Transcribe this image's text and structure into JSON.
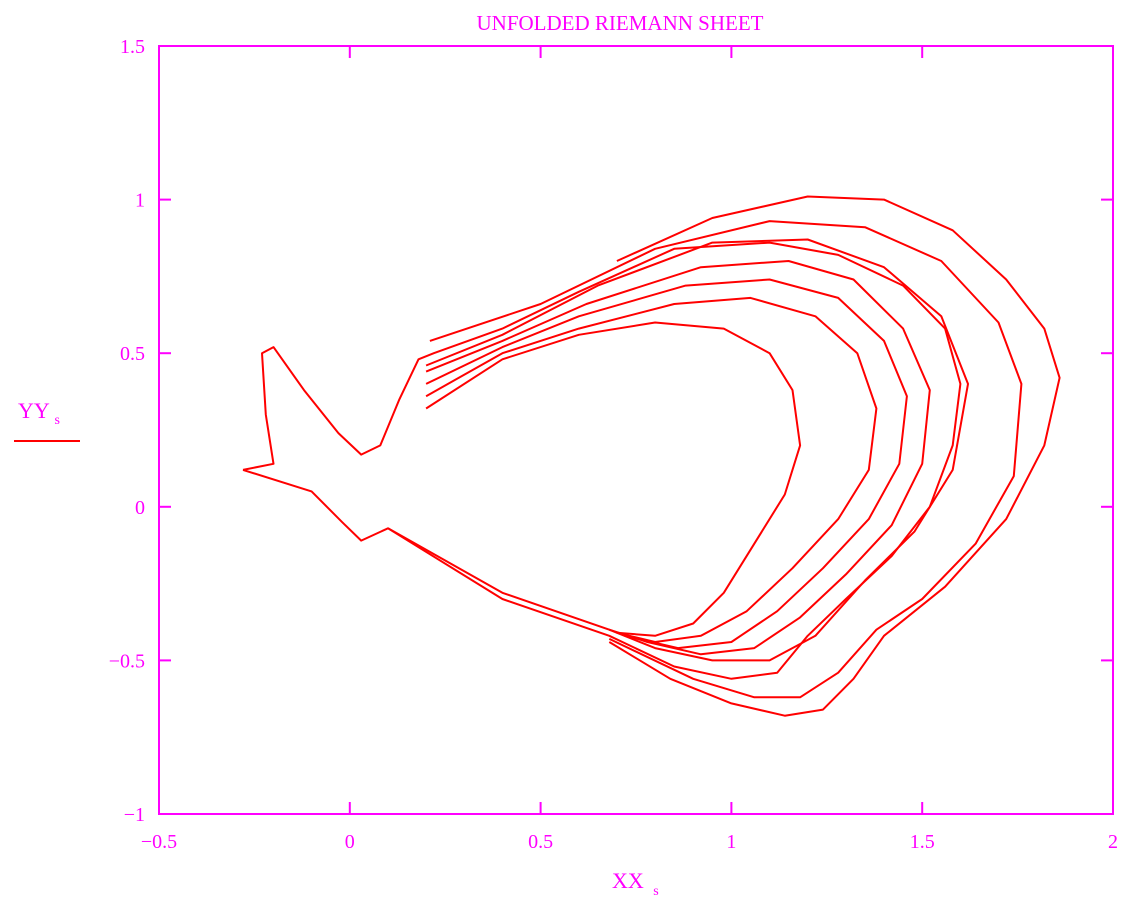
{
  "chart_data": {
    "type": "line",
    "title": "UNFOLDED RIEMANN SHEET",
    "xlabel": "XX",
    "xlabel_sub": "s",
    "ylabel": "YY",
    "ylabel_sub": "s",
    "xlim": [
      -0.5,
      2
    ],
    "ylim": [
      -1,
      1.5
    ],
    "xticks": [
      -0.5,
      0,
      0.5,
      1,
      1.5,
      2
    ],
    "yticks": [
      -1,
      -0.5,
      0,
      0.5,
      1,
      1.5
    ],
    "xtick_labels": [
      "−0.5",
      "0",
      "0.5",
      "1",
      "1.5",
      "2"
    ],
    "ytick_labels": [
      "−1",
      "−0.5",
      "0",
      "0.5",
      "1",
      "1.5"
    ],
    "grid": false,
    "legend": "left",
    "colors": {
      "axes": "#ff00ff",
      "series": "#ff0000"
    },
    "series": [
      {
        "points": [
          [
            -0.28,
            0.12
          ],
          [
            -0.2,
            0.14
          ],
          [
            -0.22,
            0.3
          ],
          [
            -0.23,
            0.5
          ],
          [
            -0.2,
            0.52
          ],
          [
            -0.12,
            0.38
          ],
          [
            -0.03,
            0.24
          ],
          [
            0.03,
            0.17
          ],
          [
            0.08,
            0.2
          ],
          [
            0.13,
            0.35
          ],
          [
            0.18,
            0.48
          ],
          [
            0.22,
            0.5
          ],
          [
            0.4,
            0.58
          ],
          [
            0.6,
            0.7
          ],
          [
            0.85,
            0.84
          ],
          [
            1.1,
            0.86
          ],
          [
            1.28,
            0.82
          ],
          [
            1.45,
            0.72
          ],
          [
            1.56,
            0.58
          ],
          [
            1.6,
            0.4
          ],
          [
            1.58,
            0.2
          ],
          [
            1.52,
            0.0
          ],
          [
            1.42,
            -0.16
          ],
          [
            1.3,
            -0.3
          ],
          [
            1.2,
            -0.42
          ],
          [
            1.12,
            -0.54
          ],
          [
            1.0,
            -0.56
          ],
          [
            0.85,
            -0.52
          ],
          [
            0.68,
            -0.42
          ],
          [
            0.4,
            -0.3
          ],
          [
            0.1,
            -0.07
          ],
          [
            0.03,
            -0.11
          ],
          [
            -0.02,
            -0.05
          ],
          [
            -0.1,
            0.05
          ],
          [
            -0.28,
            0.12
          ]
        ]
      },
      {
        "points": [
          [
            0.2,
            0.46
          ],
          [
            0.4,
            0.56
          ],
          [
            0.65,
            0.72
          ],
          [
            0.95,
            0.86
          ],
          [
            1.2,
            0.87
          ],
          [
            1.4,
            0.78
          ],
          [
            1.55,
            0.62
          ],
          [
            1.62,
            0.4
          ],
          [
            1.58,
            0.12
          ],
          [
            1.48,
            -0.08
          ],
          [
            1.35,
            -0.24
          ],
          [
            1.22,
            -0.42
          ],
          [
            1.1,
            -0.5
          ],
          [
            0.95,
            -0.5
          ],
          [
            0.8,
            -0.46
          ],
          [
            0.68,
            -0.4
          ],
          [
            0.4,
            -0.28
          ],
          [
            0.1,
            -0.07
          ]
        ]
      },
      {
        "points": [
          [
            0.2,
            0.44
          ],
          [
            0.4,
            0.54
          ],
          [
            0.62,
            0.66
          ],
          [
            0.92,
            0.78
          ],
          [
            1.15,
            0.8
          ],
          [
            1.32,
            0.74
          ],
          [
            1.45,
            0.58
          ],
          [
            1.52,
            0.38
          ],
          [
            1.5,
            0.14
          ],
          [
            1.42,
            -0.06
          ],
          [
            1.3,
            -0.22
          ],
          [
            1.18,
            -0.36
          ],
          [
            1.06,
            -0.46
          ],
          [
            0.92,
            -0.48
          ],
          [
            0.78,
            -0.44
          ],
          [
            0.68,
            -0.4
          ]
        ]
      },
      {
        "points": [
          [
            0.2,
            0.4
          ],
          [
            0.4,
            0.52
          ],
          [
            0.6,
            0.62
          ],
          [
            0.88,
            0.72
          ],
          [
            1.1,
            0.74
          ],
          [
            1.28,
            0.68
          ],
          [
            1.4,
            0.54
          ],
          [
            1.46,
            0.36
          ],
          [
            1.44,
            0.14
          ],
          [
            1.36,
            -0.04
          ],
          [
            1.24,
            -0.2
          ],
          [
            1.12,
            -0.34
          ],
          [
            1.0,
            -0.44
          ],
          [
            0.86,
            -0.46
          ],
          [
            0.72,
            -0.42
          ]
        ]
      },
      {
        "points": [
          [
            0.2,
            0.36
          ],
          [
            0.4,
            0.5
          ],
          [
            0.6,
            0.58
          ],
          [
            0.85,
            0.66
          ],
          [
            1.05,
            0.68
          ],
          [
            1.22,
            0.62
          ],
          [
            1.33,
            0.5
          ],
          [
            1.38,
            0.32
          ],
          [
            1.36,
            0.12
          ],
          [
            1.28,
            -0.04
          ],
          [
            1.16,
            -0.2
          ],
          [
            1.04,
            -0.34
          ],
          [
            0.92,
            -0.42
          ],
          [
            0.8,
            -0.44
          ],
          [
            0.7,
            -0.41
          ]
        ]
      },
      {
        "points": [
          [
            0.2,
            0.32
          ],
          [
            0.4,
            0.48
          ],
          [
            0.6,
            0.56
          ],
          [
            0.8,
            0.6
          ],
          [
            0.98,
            0.58
          ],
          [
            1.1,
            0.5
          ],
          [
            1.16,
            0.38
          ],
          [
            1.18,
            0.2
          ],
          [
            1.14,
            0.04
          ],
          [
            1.06,
            -0.12
          ],
          [
            0.98,
            -0.28
          ],
          [
            0.9,
            -0.38
          ],
          [
            0.8,
            -0.42
          ],
          [
            0.7,
            -0.41
          ]
        ]
      },
      {
        "points": [
          [
            0.21,
            0.54
          ],
          [
            0.5,
            0.66
          ],
          [
            0.8,
            0.84
          ],
          [
            1.1,
            0.93
          ],
          [
            1.35,
            0.91
          ],
          [
            1.55,
            0.8
          ],
          [
            1.7,
            0.6
          ],
          [
            1.76,
            0.4
          ],
          [
            1.74,
            0.1
          ],
          [
            1.64,
            -0.12
          ],
          [
            1.5,
            -0.3
          ],
          [
            1.38,
            -0.4
          ],
          [
            1.28,
            -0.54
          ],
          [
            1.18,
            -0.62
          ],
          [
            1.06,
            -0.62
          ],
          [
            0.9,
            -0.56
          ],
          [
            0.68,
            -0.43
          ]
        ]
      },
      {
        "points": [
          [
            0.7,
            0.8
          ],
          [
            0.95,
            0.94
          ],
          [
            1.2,
            1.01
          ],
          [
            1.4,
            1.0
          ],
          [
            1.58,
            0.9
          ],
          [
            1.72,
            0.74
          ],
          [
            1.82,
            0.58
          ],
          [
            1.86,
            0.42
          ],
          [
            1.82,
            0.2
          ],
          [
            1.72,
            -0.04
          ],
          [
            1.56,
            -0.26
          ],
          [
            1.4,
            -0.42
          ],
          [
            1.32,
            -0.56
          ],
          [
            1.24,
            -0.66
          ],
          [
            1.14,
            -0.68
          ],
          [
            1.0,
            -0.64
          ],
          [
            0.84,
            -0.56
          ],
          [
            0.68,
            -0.44
          ]
        ]
      }
    ]
  }
}
